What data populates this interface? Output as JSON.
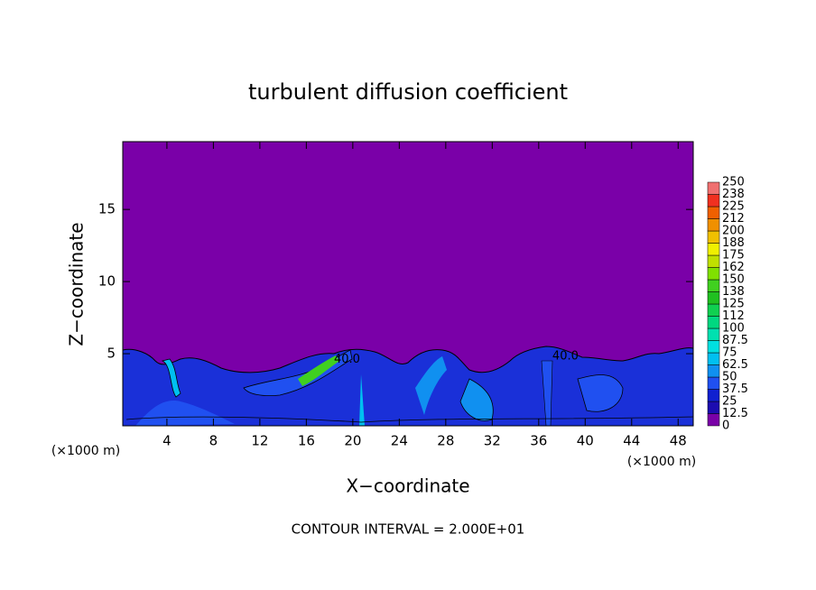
{
  "chart_data": {
    "type": "contour",
    "title": "turbulent diffusion coefficient",
    "xlabel": "X−coordinate",
    "ylabel": "Z−coordinate",
    "x_unit_label": "(×1000 m)",
    "y_unit_label": "(×1000 m)",
    "footnote": "CONTOUR INTERVAL = 2.000E+01",
    "xlim": [
      0.2,
      49.3
    ],
    "ylim": [
      0,
      19.7
    ],
    "xticks": [
      4,
      8,
      12,
      16,
      20,
      24,
      28,
      32,
      36,
      40,
      44,
      48
    ],
    "yticks": [
      5,
      10,
      15
    ],
    "colorbar": {
      "levels": [
        0,
        12.5,
        25,
        37.5,
        50,
        62.5,
        75,
        87.5,
        100,
        112,
        125,
        138,
        150,
        162,
        175,
        188,
        200,
        212,
        225,
        238,
        250
      ],
      "colors": [
        "#7a00a8",
        "#1c0cb0",
        "#1020d0",
        "#2050f0",
        "#1090f0",
        "#00c0f0",
        "#00e0e0",
        "#00e0b0",
        "#00d880",
        "#10d050",
        "#20c020",
        "#40d020",
        "#80e000",
        "#c0e000",
        "#f0f000",
        "#f0c000",
        "#f09000",
        "#f06000",
        "#f03020",
        "#f07070"
      ]
    },
    "contour_labels": [
      {
        "x": 19.5,
        "y": 4.6,
        "value": 40,
        "label": "40.0"
      },
      {
        "x": 38.3,
        "y": 4.8,
        "value": 40,
        "label": "40.0"
      }
    ]
  }
}
